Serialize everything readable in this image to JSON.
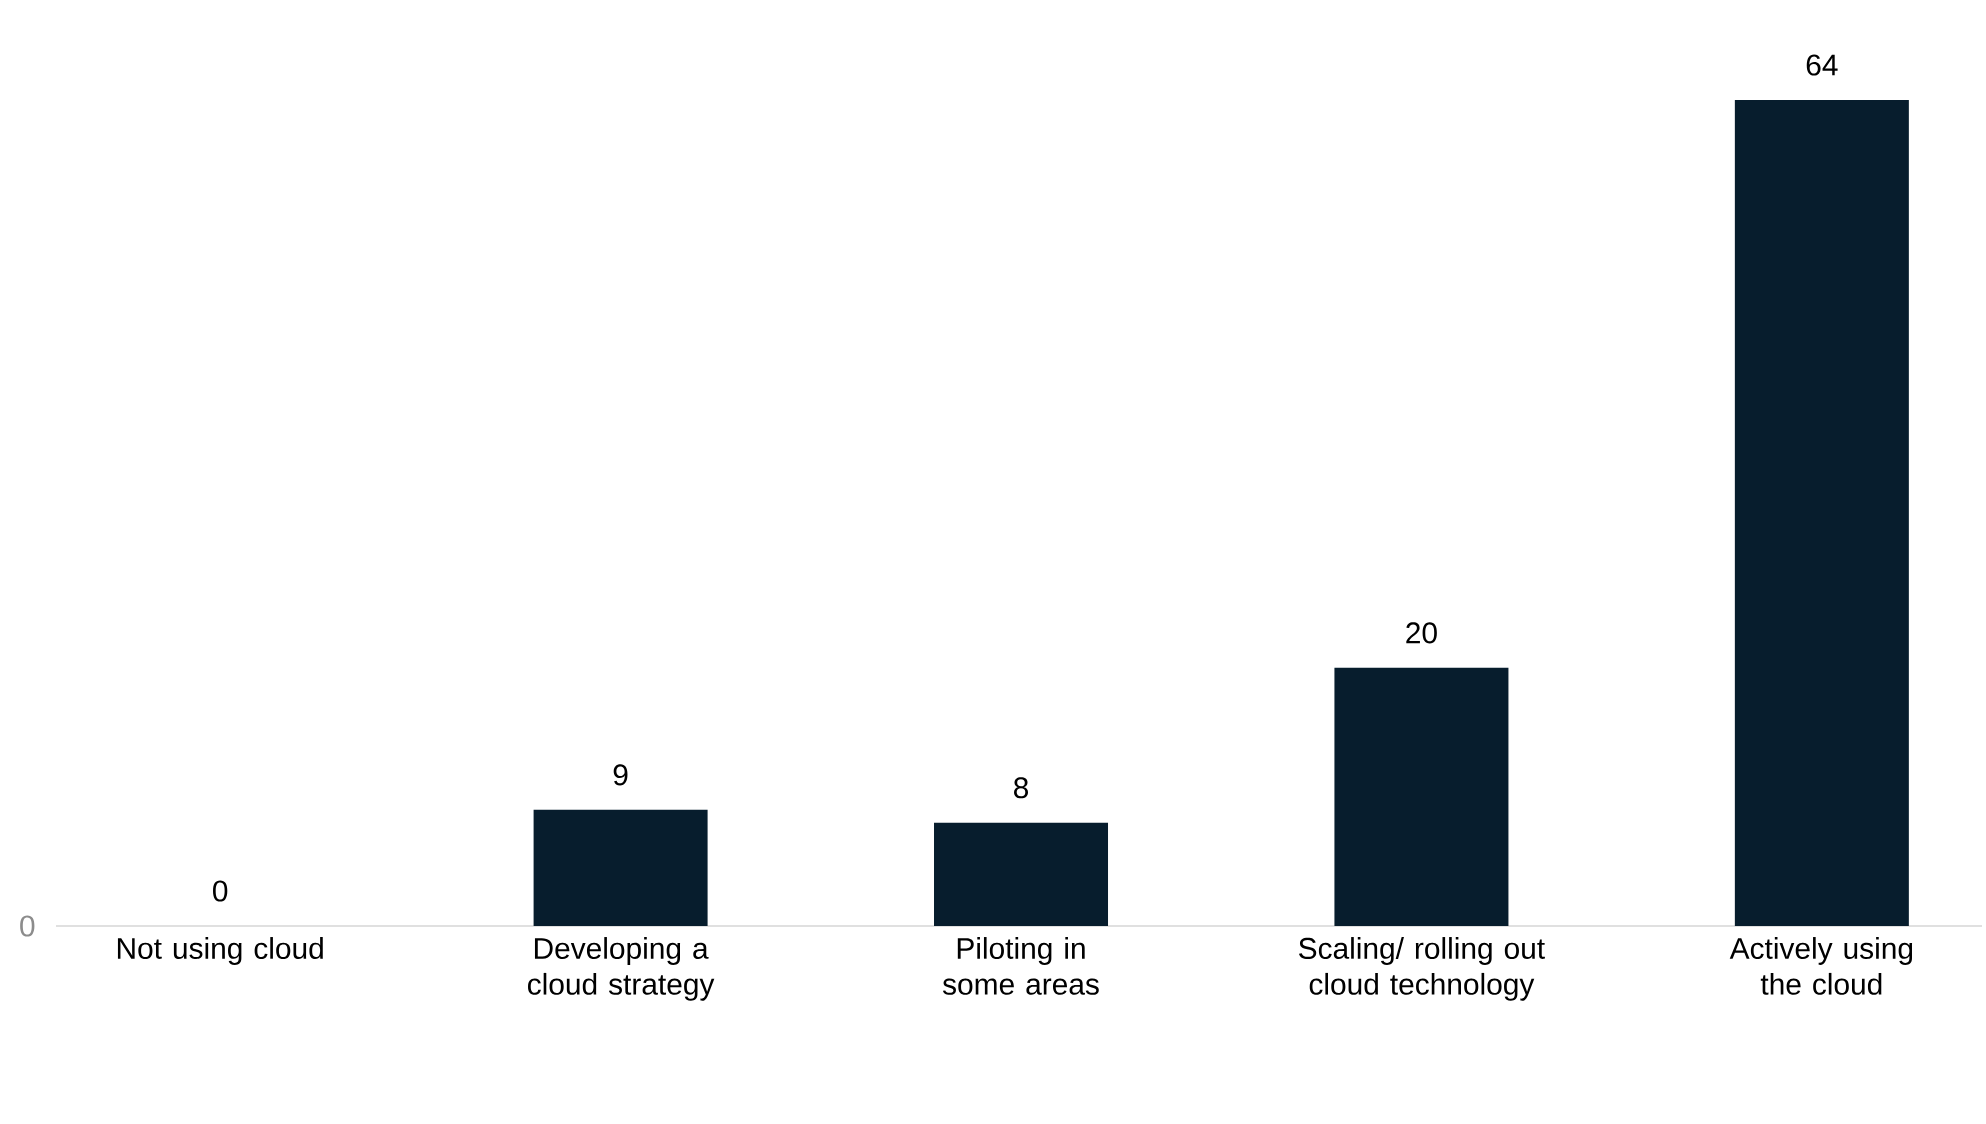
{
  "chart_data": {
    "type": "bar",
    "categories": [
      "Not using cloud",
      "Developing a cloud strategy",
      "Piloting in some areas",
      "Scaling/ rolling out cloud technology",
      "Actively using the cloud"
    ],
    "values": [
      0,
      9,
      8,
      20,
      64
    ],
    "color": "#071d2d",
    "data_labels": true,
    "annotations": [
      "0"
    ]
  }
}
